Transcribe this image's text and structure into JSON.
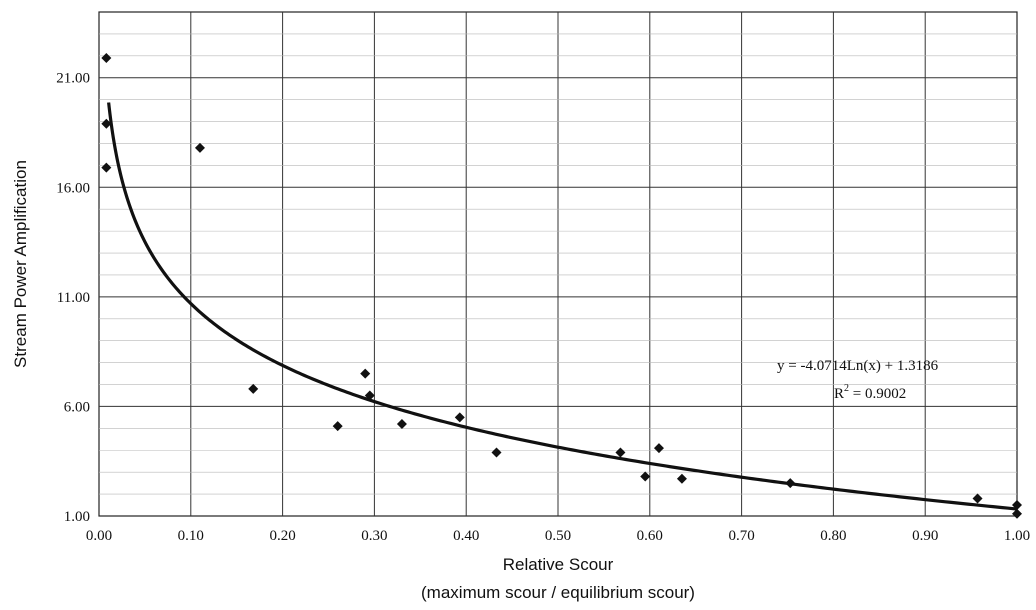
{
  "chart_data": {
    "type": "scatter",
    "xlabel": "Relative Scour",
    "xlabel_sub": "(maximum scour / equilibrium scour)",
    "ylabel": "Stream Power Amplification",
    "xlim": [
      0.0,
      1.0
    ],
    "ylim": [
      1.0,
      24.0
    ],
    "x_ticks": [
      "0.00",
      "0.10",
      "0.20",
      "0.30",
      "0.40",
      "0.50",
      "0.60",
      "0.70",
      "0.80",
      "0.90",
      "1.00"
    ],
    "y_ticks": [
      "1.00",
      "6.00",
      "11.00",
      "16.00",
      "21.00"
    ],
    "grid": true,
    "points": [
      {
        "x": 0.008,
        "y": 21.9
      },
      {
        "x": 0.008,
        "y": 18.9
      },
      {
        "x": 0.008,
        "y": 16.9
      },
      {
        "x": 0.11,
        "y": 17.8
      },
      {
        "x": 0.168,
        "y": 6.8
      },
      {
        "x": 0.26,
        "y": 5.1
      },
      {
        "x": 0.29,
        "y": 7.5
      },
      {
        "x": 0.295,
        "y": 6.5
      },
      {
        "x": 0.33,
        "y": 5.2
      },
      {
        "x": 0.393,
        "y": 5.5
      },
      {
        "x": 0.433,
        "y": 3.9
      },
      {
        "x": 0.568,
        "y": 3.9
      },
      {
        "x": 0.595,
        "y": 2.8
      },
      {
        "x": 0.61,
        "y": 4.1
      },
      {
        "x": 0.635,
        "y": 2.7
      },
      {
        "x": 0.753,
        "y": 2.5
      },
      {
        "x": 0.957,
        "y": 1.8
      },
      {
        "x": 1.0,
        "y": 1.5
      },
      {
        "x": 1.0,
        "y": 1.1
      }
    ],
    "trendline": {
      "a": -4.0714,
      "b": 1.3186,
      "equation": "y = -4.0714Ln(x) + 1.3186",
      "r2_prefix": "R",
      "r2_sup": "2",
      "r2_value": " = 0.9002"
    }
  }
}
